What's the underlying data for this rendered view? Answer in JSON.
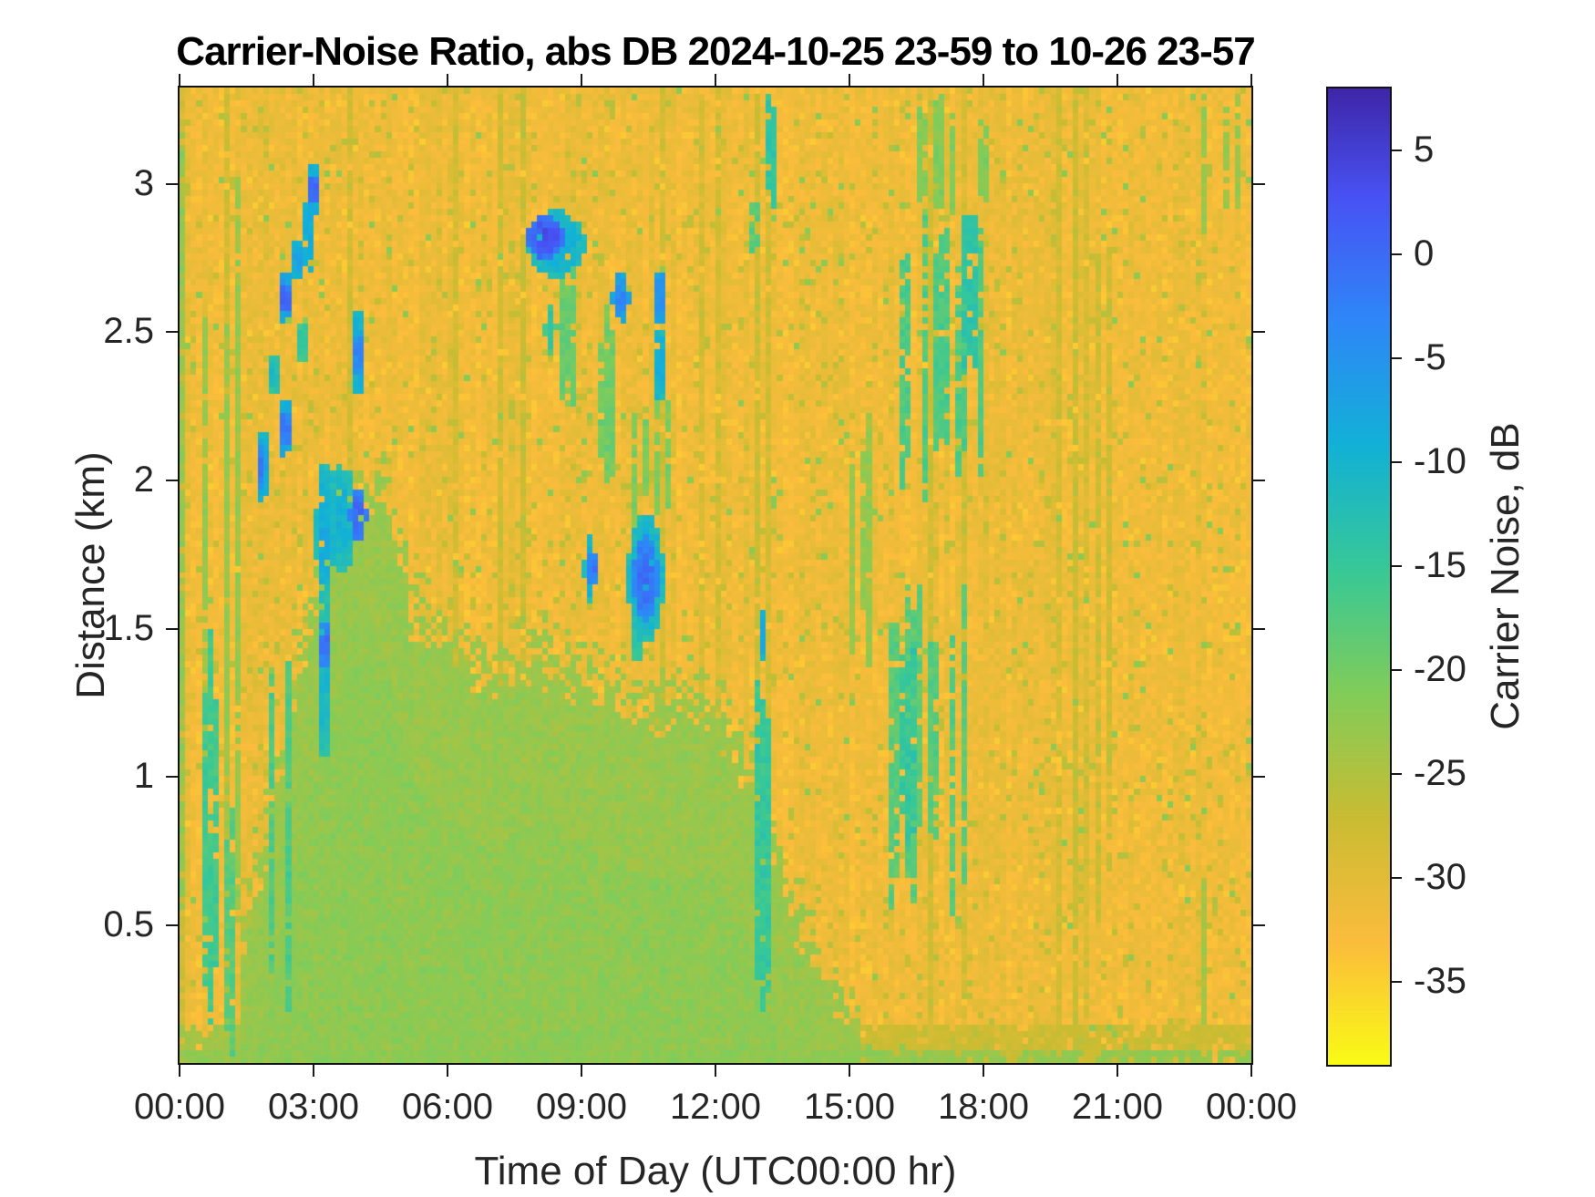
{
  "chart_data": {
    "type": "heatmap",
    "title": "Carrier-Noise Ratio, abs DB 2024-10-25 23-59 to 10-26 23-57",
    "xlabel": "Time of Day (UTC00:00 hr)",
    "ylabel": "Distance (km)",
    "colorbar_label": "Carrier Noise, dB",
    "x_tick_hours": [
      0,
      3,
      6,
      9,
      12,
      15,
      18,
      21,
      24
    ],
    "x_tick_labels": [
      "00:00",
      "03:00",
      "06:00",
      "09:00",
      "12:00",
      "15:00",
      "18:00",
      "21:00",
      "00:00"
    ],
    "y_tick_values": [
      3,
      2.5,
      2,
      1.5,
      1,
      0.5
    ],
    "y_tick_labels": [
      "3",
      "2.5",
      "2",
      "1.5",
      "1",
      "0.5"
    ],
    "x_range_hours": [
      0,
      24
    ],
    "y_range_km": [
      0.035,
      3.325
    ],
    "value_range_db": [
      -39,
      8
    ],
    "colorbar_tick_values": [
      5,
      0,
      -5,
      -10,
      -15,
      -20,
      -25,
      -30,
      -35
    ],
    "colorbar_orientation": "vertical, high values (dark blue) at top, low values (yellow) at bottom",
    "grid": {
      "cols": 192,
      "rows": 153
    },
    "colormap": {
      "name": "parula-flipped (max dB = dark blue, min dB = yellow)",
      "anchors_u_rgb": [
        [
          0.0,
          62,
          38,
          168
        ],
        [
          0.111,
          72,
          82,
          244
        ],
        [
          0.238,
          46,
          135,
          247
        ],
        [
          0.365,
          18,
          177,
          214
        ],
        [
          0.492,
          55,
          200,
          151
        ],
        [
          0.619,
          129,
          204,
          89
        ],
        [
          0.746,
          201,
          188,
          50
        ],
        [
          0.873,
          251,
          188,
          60
        ],
        [
          1.0,
          249,
          251,
          21
        ]
      ]
    },
    "noise": {
      "seed": 20241026,
      "base_db": -31.5,
      "cell_noise_db": 2.3,
      "column_noise_db": 1.0,
      "green_column_prob": 0.09,
      "green_column_boost_db": 3.8,
      "green_speckle_prob": 0.045,
      "green_speckle_db": -26,
      "teal_speckle_prob": 0.01,
      "teal_speckle_db": -22.5,
      "bright_speckle_prob": 0.05,
      "bright_speckle_db": -34.5
    },
    "lower_green_region": {
      "description": "broad green (~-23 dB) layer filling low altitudes from ~01:30 to ~15:00, upper boundary in km vs hour",
      "boundary_t_d": [
        [
          1.4,
          0.45
        ],
        [
          2.2,
          1.0
        ],
        [
          3.0,
          1.6
        ],
        [
          3.6,
          1.95
        ],
        [
          4.6,
          2.0
        ],
        [
          5.2,
          1.6
        ],
        [
          6.0,
          1.45
        ],
        [
          7.0,
          1.35
        ],
        [
          8.0,
          1.45
        ],
        [
          9.0,
          1.35
        ],
        [
          10.5,
          1.25
        ],
        [
          12.0,
          1.25
        ],
        [
          13.0,
          0.95
        ],
        [
          13.8,
          0.55
        ],
        [
          14.6,
          0.3
        ],
        [
          15.2,
          0.18
        ]
      ],
      "value_db": -23,
      "noise_db": 1.8,
      "blend_km": 0.15
    },
    "bottom_band": {
      "d_max_km": 0.17,
      "value_db": -24,
      "fade_after_hour": 15.3,
      "faded_db": -27.5,
      "ground_rows_db": -22.5
    },
    "streak_groups_format": "[t_start_hr, t_end_hr, d_low_km, d_high_km, level_db, column_density]",
    "streak_groups": [
      [
        0.02,
        1.3,
        0.03,
        3.33,
        -23,
        0.5
      ],
      [
        0.3,
        0.8,
        0.03,
        1.65,
        -16,
        0.5
      ],
      [
        0.9,
        1.25,
        0.03,
        1.0,
        -18,
        0.45
      ],
      [
        2.05,
        2.5,
        0.03,
        1.6,
        -17,
        0.35
      ],
      [
        3.95,
        4.2,
        0.03,
        1.3,
        -17,
        0.3
      ],
      [
        8.55,
        8.8,
        2.25,
        2.78,
        -19,
        0.9
      ],
      [
        9.42,
        9.62,
        2.0,
        2.62,
        -20,
        0.9
      ],
      [
        9.95,
        10.85,
        1.85,
        2.3,
        -21,
        0.5
      ],
      [
        12.93,
        13.07,
        0.15,
        1.52,
        -15,
        1.0
      ],
      [
        13.1,
        13.28,
        2.92,
        3.33,
        -14,
        0.9
      ],
      [
        12.72,
        12.85,
        2.75,
        2.97,
        -18,
        0.9
      ],
      [
        14.95,
        15.35,
        1.35,
        2.25,
        -23,
        0.5
      ],
      [
        15.85,
        17.95,
        1.95,
        2.95,
        -17,
        0.45
      ],
      [
        16.5,
        17.95,
        2.9,
        3.3,
        -21,
        0.35
      ],
      [
        17.45,
        17.75,
        2.35,
        2.95,
        -14,
        0.7
      ],
      [
        15.9,
        17.5,
        0.55,
        1.65,
        -18,
        0.45
      ],
      [
        16.15,
        16.65,
        0.7,
        1.55,
        -15,
        0.7
      ],
      [
        22.75,
        23.65,
        2.85,
        3.33,
        -23,
        0.5
      ],
      [
        22.85,
        23.35,
        0.05,
        0.75,
        -24,
        0.55
      ],
      [
        20.2,
        20.7,
        0.03,
        3.33,
        -27.5,
        0.4
      ]
    ],
    "blobs_format": "[t_start_hr, t_end_hr, d_low_km, d_high_km, peak_db]",
    "blobs": [
      [
        1.7,
        1.85,
        1.93,
        2.18,
        -6
      ],
      [
        1.73,
        1.8,
        2.0,
        2.12,
        -1
      ],
      [
        2.02,
        2.12,
        2.3,
        2.44,
        -10
      ],
      [
        2.22,
        2.4,
        2.08,
        2.3,
        -5
      ],
      [
        2.28,
        2.38,
        2.12,
        2.25,
        0
      ],
      [
        2.22,
        2.36,
        2.52,
        2.72,
        -4
      ],
      [
        2.26,
        2.33,
        2.58,
        2.68,
        2
      ],
      [
        2.48,
        2.62,
        2.68,
        2.84,
        -6
      ],
      [
        2.6,
        2.76,
        2.4,
        2.55,
        -13
      ],
      [
        2.73,
        2.92,
        2.7,
        2.95,
        -7
      ],
      [
        2.88,
        3.02,
        2.9,
        3.08,
        -6
      ],
      [
        2.91,
        2.99,
        2.94,
        3.04,
        2
      ],
      [
        3.05,
        3.35,
        1.6,
        2.05,
        -8
      ],
      [
        3.08,
        3.22,
        1.05,
        1.62,
        -9
      ],
      [
        3.08,
        3.2,
        1.36,
        1.54,
        0
      ],
      [
        3.3,
        3.9,
        1.72,
        2.06,
        -9
      ],
      [
        3.72,
        4.18,
        1.82,
        1.98,
        1
      ],
      [
        3.85,
        4.02,
        2.28,
        2.62,
        -7
      ],
      [
        3.88,
        3.97,
        2.35,
        2.5,
        -2
      ],
      [
        7.7,
        9.0,
        2.7,
        2.92,
        -8
      ],
      [
        7.78,
        8.55,
        2.76,
        2.9,
        3
      ],
      [
        8.1,
        8.35,
        2.45,
        2.6,
        -13
      ],
      [
        9.62,
        9.95,
        2.56,
        2.7,
        -4
      ],
      [
        9.78,
        9.88,
        2.58,
        2.66,
        -1
      ],
      [
        10.65,
        10.8,
        2.52,
        2.72,
        -3
      ],
      [
        10.6,
        10.75,
        2.28,
        2.52,
        -7
      ],
      [
        9.05,
        9.3,
        1.6,
        1.82,
        -8
      ],
      [
        9.08,
        9.28,
        1.64,
        1.78,
        0
      ],
      [
        10.0,
        10.75,
        1.48,
        1.88,
        -8
      ],
      [
        10.08,
        10.68,
        1.54,
        1.82,
        0
      ],
      [
        10.15,
        10.3,
        1.4,
        1.55,
        -12
      ],
      [
        12.95,
        13.05,
        1.42,
        1.56,
        -7
      ]
    ]
  }
}
